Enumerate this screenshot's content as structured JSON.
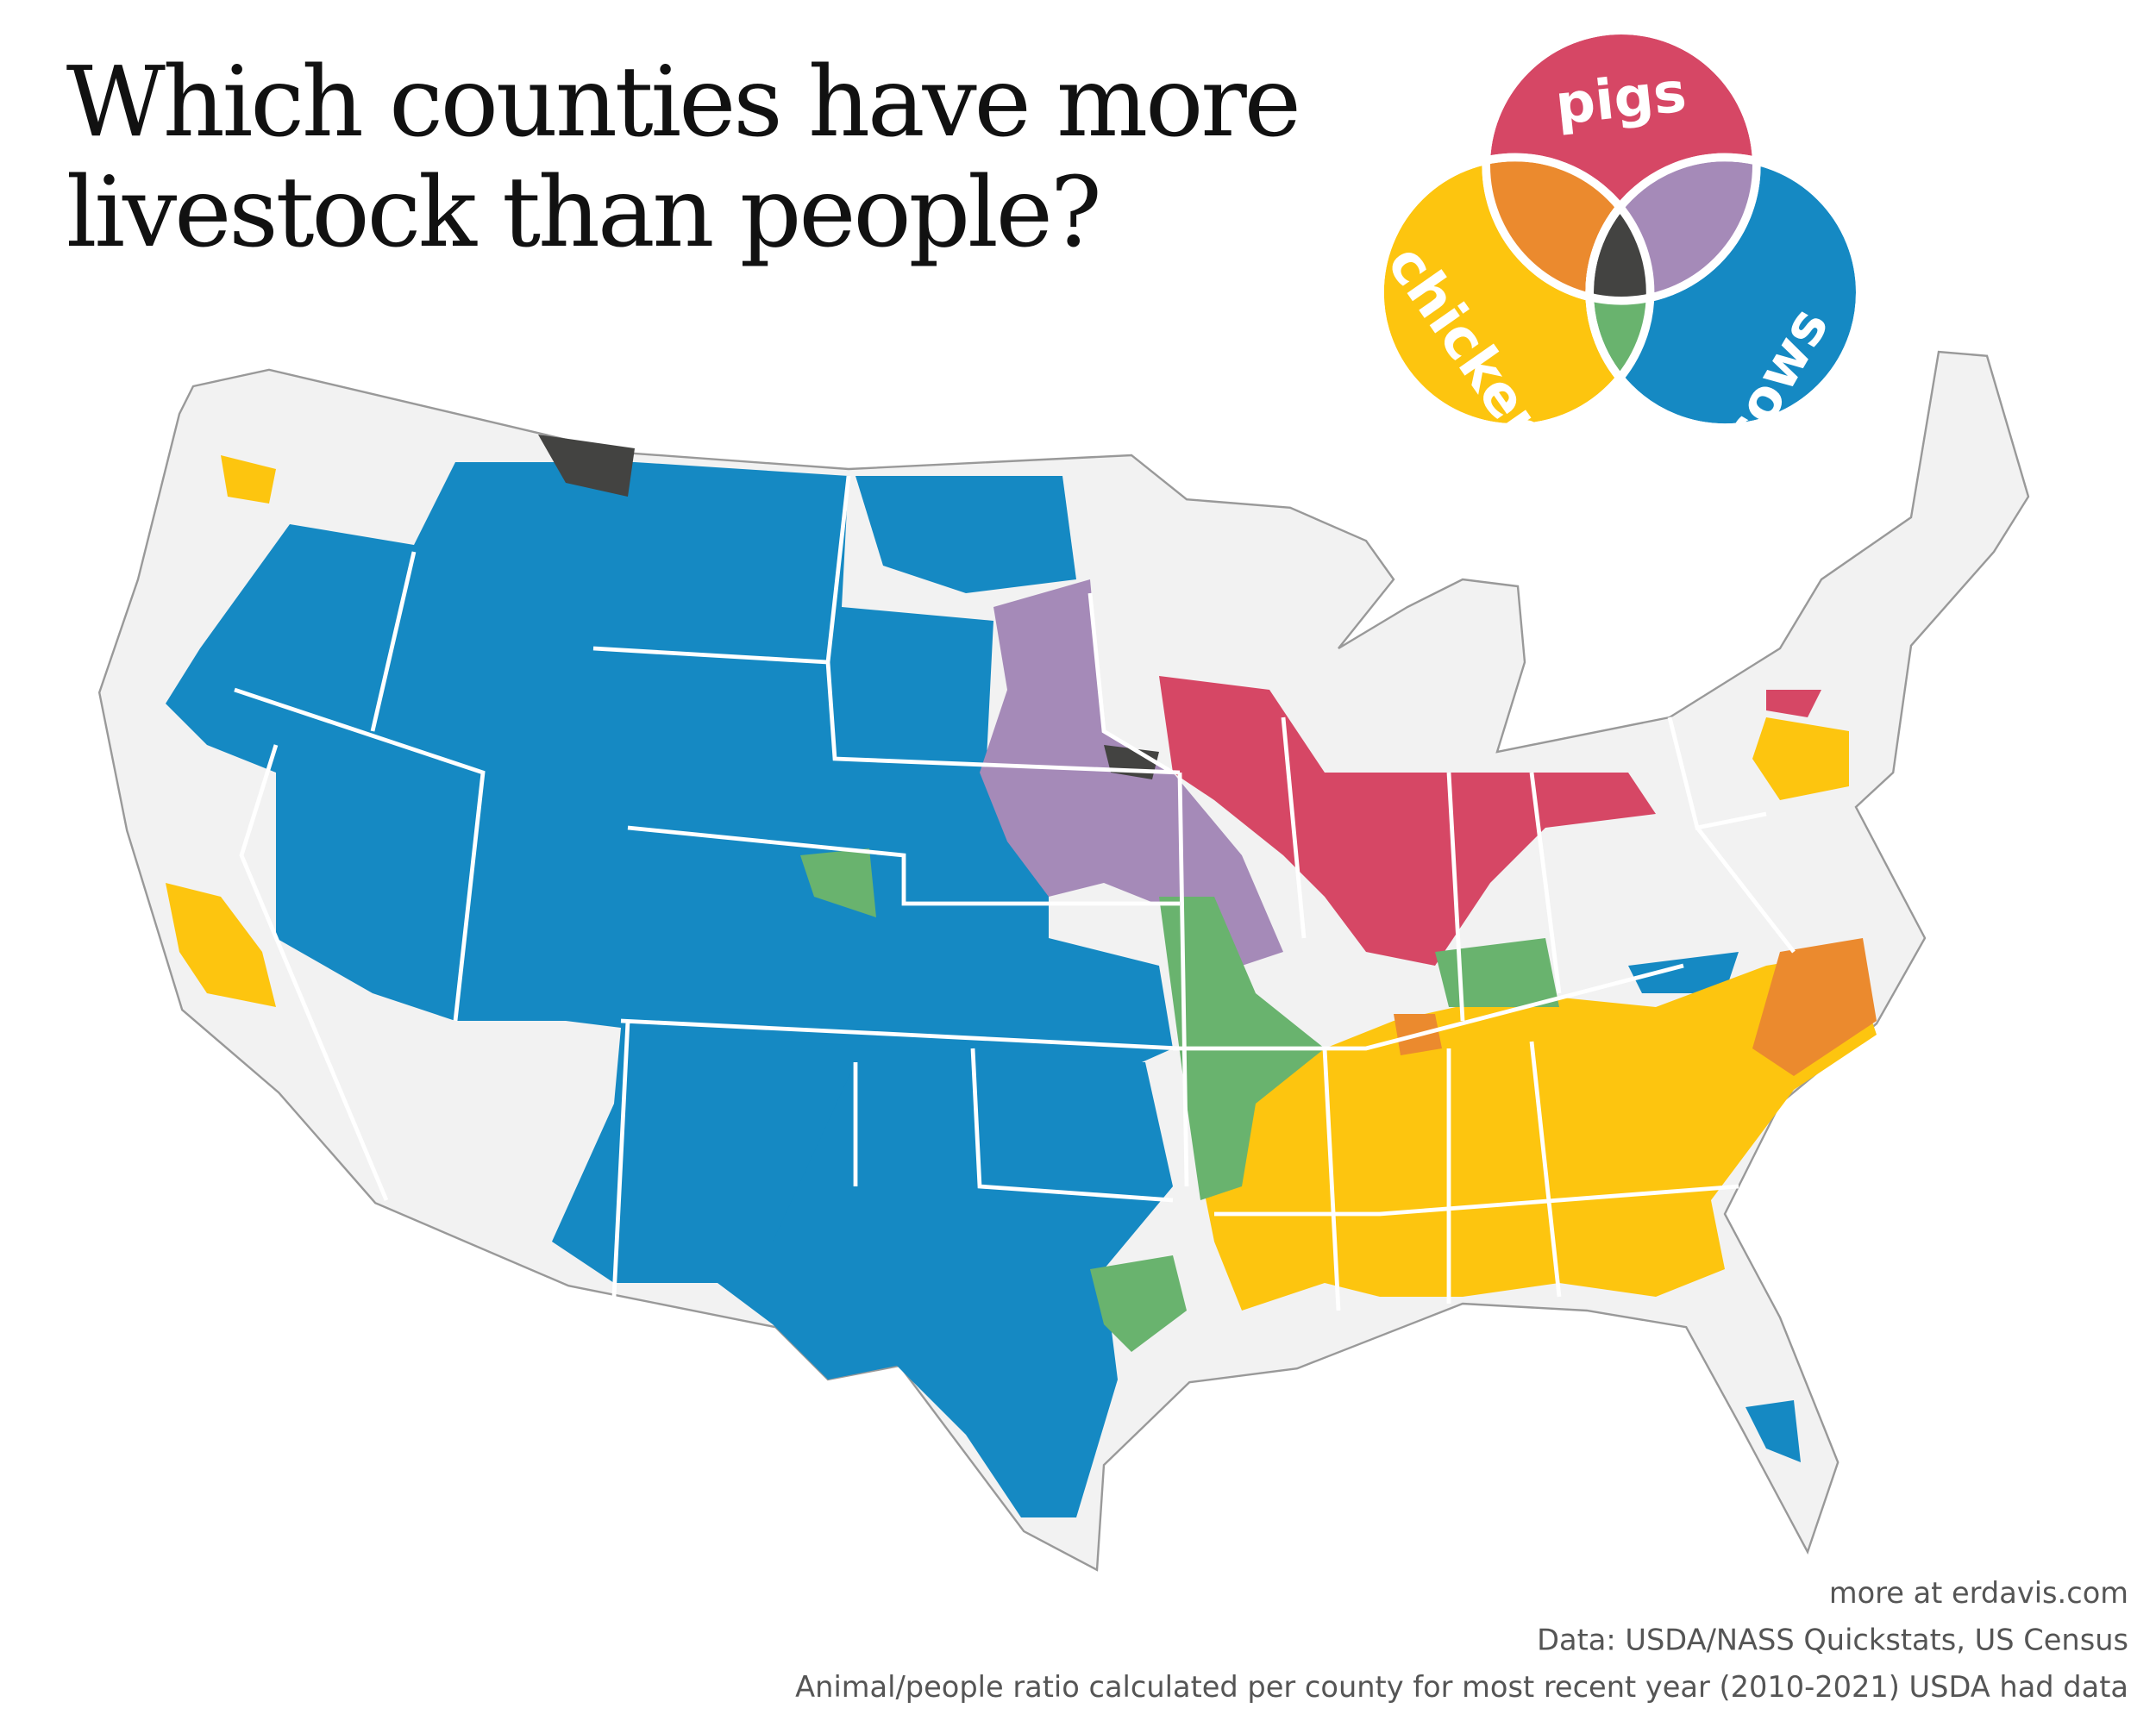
{
  "title": {
    "line1": "Which counties have more",
    "line2": "livestock than people?"
  },
  "legend": {
    "pigs": {
      "label": "pigs",
      "color": "#D64765"
    },
    "chickens": {
      "label": "chickens",
      "color": "#FDC50F"
    },
    "cows": {
      "label": "cows",
      "color": "#1589C3"
    },
    "pigs_chickens": {
      "color": "#EB8A2E"
    },
    "pigs_cows": {
      "color": "#A58AB8"
    },
    "chickens_cows": {
      "color": "#69B36E"
    },
    "all_three": {
      "color": "#434341"
    }
  },
  "map": {
    "land_color": "#F2F2F2",
    "border_color": "#FFFFFF",
    "outline_color": "#999999"
  },
  "footer": {
    "credit": "more at erdavis.com",
    "source": "Data: USDA/NASS Quickstats, US Census",
    "note": "Animal/people ratio calculated per county for most recent year (2010-2021) USDA had data"
  }
}
